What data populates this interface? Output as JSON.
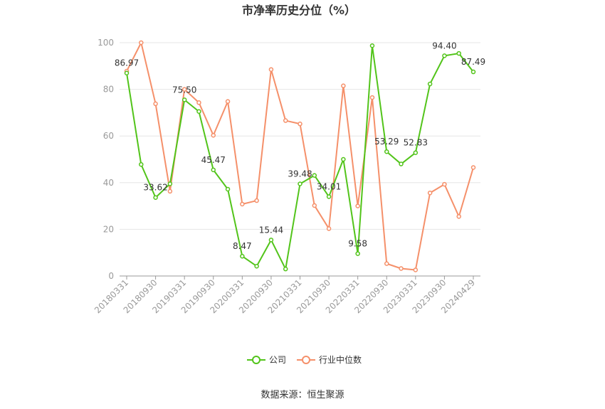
{
  "chart_data": {
    "type": "line",
    "title": "市净率历史分位（%）",
    "xlabel": "",
    "ylabel": "",
    "ylim": [
      0,
      100
    ],
    "yticks": [
      0,
      20,
      40,
      60,
      80,
      100
    ],
    "x": [
      "20180331",
      "20180630",
      "20180930",
      "20181231",
      "20190331",
      "20190630",
      "20190930",
      "20191231",
      "20200331",
      "20200630",
      "20200930",
      "20201231",
      "20210331",
      "20210630",
      "20210930",
      "20211231",
      "20220331",
      "20220630",
      "20220930",
      "20221231",
      "20230331",
      "20230630",
      "20230930",
      "20231231",
      "20240429"
    ],
    "xtick_labels": [
      "20180331",
      "20180930",
      "20190331",
      "20190930",
      "20200331",
      "20200930",
      "20210331",
      "20210930",
      "20220331",
      "20220930",
      "20230331",
      "20230930",
      "20240429"
    ],
    "grid": true,
    "legend_position": "bottom",
    "series": [
      {
        "name": "公司",
        "color": "#52c41a",
        "values": [
          86.97,
          47.8,
          33.62,
          39.5,
          75.5,
          70.5,
          45.47,
          37.2,
          8.47,
          4.2,
          15.44,
          3.0,
          39.48,
          43.1,
          34.01,
          50.0,
          9.58,
          98.7,
          53.29,
          48.0,
          52.83,
          82.3,
          94.4,
          95.4,
          87.49
        ],
        "labels": [
          "86.97",
          "",
          "33.62",
          "",
          "75.50",
          "",
          "45.47",
          "",
          "8.47",
          "",
          "15.44",
          "",
          "39.48",
          "",
          "34.01",
          "",
          "9.58",
          "",
          "53.29",
          "",
          "52.83",
          "",
          "94.40",
          "",
          "87.49"
        ]
      },
      {
        "name": "行业中位数",
        "color": "#f5906a",
        "values": [
          87.8,
          100,
          73.8,
          36.3,
          80.0,
          74.3,
          60.3,
          74.8,
          30.8,
          32.3,
          88.5,
          66.6,
          65.2,
          30.2,
          20.3,
          81.5,
          30.0,
          76.5,
          5.3,
          3.2,
          2.6,
          35.6,
          39.3,
          25.5,
          46.5
        ]
      }
    ]
  },
  "source": "数据来源：恒生聚源"
}
